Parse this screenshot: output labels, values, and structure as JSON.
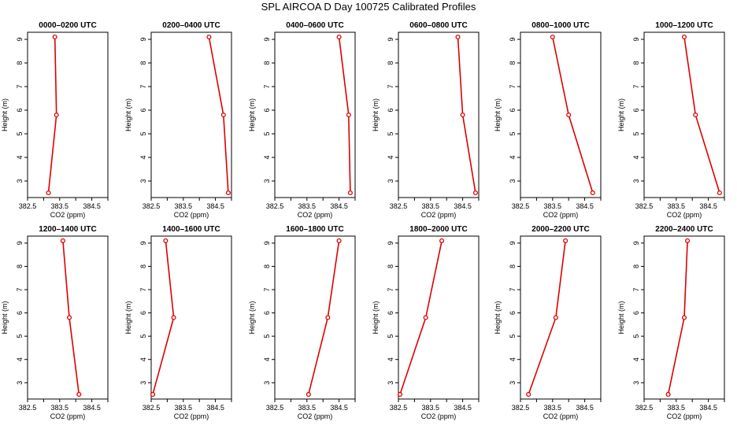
{
  "figure": {
    "title": "SPL AIRCOA D  Day 100725  Calibrated Profiles"
  },
  "style": {
    "line_color": "#dd0000",
    "marker_color": "#dd0000"
  },
  "chart_data": [
    {
      "type": "line",
      "title": "0000–0200 UTC",
      "xlabel": "CO2 (ppm)",
      "ylabel": "Height (m)",
      "xlim": [
        382.5,
        385.0
      ],
      "ylim": [
        2.3,
        9.3
      ],
      "xticks": [
        "382.5",
        "383.5",
        "384.5"
      ],
      "yticks": [
        "3",
        "4",
        "5",
        "6",
        "7",
        "8",
        "9"
      ],
      "x": [
        383.15,
        383.4,
        383.35
      ],
      "y": [
        2.5,
        5.8,
        9.1
      ]
    },
    {
      "type": "line",
      "title": "0200–0400 UTC",
      "xlabel": "CO2 (ppm)",
      "ylabel": "Height (m)",
      "xlim": [
        382.5,
        385.0
      ],
      "ylim": [
        2.3,
        9.3
      ],
      "xticks": [
        "382.5",
        "383.5",
        "384.5"
      ],
      "yticks": [
        "3",
        "4",
        "5",
        "6",
        "7",
        "8",
        "9"
      ],
      "x": [
        384.9,
        384.75,
        384.3
      ],
      "y": [
        2.5,
        5.8,
        9.1
      ]
    },
    {
      "type": "line",
      "title": "0400–0600 UTC",
      "xlabel": "CO2 (ppm)",
      "ylabel": "Height (m)",
      "xlim": [
        382.5,
        385.0
      ],
      "ylim": [
        2.3,
        9.3
      ],
      "xticks": [
        "382.5",
        "383.5",
        "384.5"
      ],
      "yticks": [
        "3",
        "4",
        "5",
        "6",
        "7",
        "8",
        "9"
      ],
      "x": [
        384.85,
        384.8,
        384.5
      ],
      "y": [
        2.5,
        5.8,
        9.1
      ]
    },
    {
      "type": "line",
      "title": "0600–0800 UTC",
      "xlabel": "CO2 (ppm)",
      "ylabel": "Height (m)",
      "xlim": [
        382.5,
        385.0
      ],
      "ylim": [
        2.3,
        9.3
      ],
      "xticks": [
        "382.5",
        "383.5",
        "384.5"
      ],
      "yticks": [
        "3",
        "4",
        "5",
        "6",
        "7",
        "8",
        "9"
      ],
      "x": [
        384.9,
        384.5,
        384.35
      ],
      "y": [
        2.5,
        5.8,
        9.1
      ]
    },
    {
      "type": "line",
      "title": "0800–1000 UTC",
      "xlabel": "CO2 (ppm)",
      "ylabel": "Height (m)",
      "xlim": [
        382.5,
        385.0
      ],
      "ylim": [
        2.3,
        9.3
      ],
      "xticks": [
        "382.5",
        "383.5",
        "384.5"
      ],
      "yticks": [
        "3",
        "4",
        "5",
        "6",
        "7",
        "8",
        "9"
      ],
      "x": [
        384.75,
        384.0,
        383.5
      ],
      "y": [
        2.5,
        5.8,
        9.1
      ]
    },
    {
      "type": "line",
      "title": "1000–1200 UTC",
      "xlabel": "CO2 (ppm)",
      "ylabel": "Height (m)",
      "xlim": [
        382.5,
        385.0
      ],
      "ylim": [
        2.3,
        9.3
      ],
      "xticks": [
        "382.5",
        "383.5",
        "384.5"
      ],
      "yticks": [
        "3",
        "4",
        "5",
        "6",
        "7",
        "8",
        "9"
      ],
      "x": [
        384.85,
        384.1,
        383.75
      ],
      "y": [
        2.5,
        5.8,
        9.1
      ]
    },
    {
      "type": "line",
      "title": "1200–1400 UTC",
      "xlabel": "CO2 (ppm)",
      "ylabel": "Height (m)",
      "xlim": [
        382.5,
        385.0
      ],
      "ylim": [
        2.3,
        9.3
      ],
      "xticks": [
        "382.5",
        "383.5",
        "384.5"
      ],
      "yticks": [
        "3",
        "4",
        "5",
        "6",
        "7",
        "8",
        "9"
      ],
      "x": [
        384.1,
        383.8,
        383.6
      ],
      "y": [
        2.5,
        5.8,
        9.1
      ]
    },
    {
      "type": "line",
      "title": "1400–1600 UTC",
      "xlabel": "CO2 (ppm)",
      "ylabel": "Height (m)",
      "xlim": [
        382.5,
        385.0
      ],
      "ylim": [
        2.3,
        9.3
      ],
      "xticks": [
        "382.5",
        "383.5",
        "384.5"
      ],
      "yticks": [
        "3",
        "4",
        "5",
        "6",
        "7",
        "8",
        "9"
      ],
      "x": [
        382.55,
        383.2,
        382.95
      ],
      "y": [
        2.5,
        5.8,
        9.1
      ]
    },
    {
      "type": "line",
      "title": "1600–1800 UTC",
      "xlabel": "CO2 (ppm)",
      "ylabel": "Height (m)",
      "xlim": [
        382.5,
        385.0
      ],
      "ylim": [
        2.3,
        9.3
      ],
      "xticks": [
        "382.5",
        "383.5",
        "384.5"
      ],
      "yticks": [
        "3",
        "4",
        "5",
        "6",
        "7",
        "8",
        "9"
      ],
      "x": [
        383.55,
        384.15,
        384.5
      ],
      "y": [
        2.5,
        5.8,
        9.1
      ]
    },
    {
      "type": "line",
      "title": "1800–2000 UTC",
      "xlabel": "CO2 (ppm)",
      "ylabel": "Height (m)",
      "xlim": [
        382.5,
        385.0
      ],
      "ylim": [
        2.3,
        9.3
      ],
      "xticks": [
        "382.5",
        "383.5",
        "384.5"
      ],
      "yticks": [
        "3",
        "4",
        "5",
        "6",
        "7",
        "8",
        "9"
      ],
      "x": [
        382.55,
        383.35,
        383.85
      ],
      "y": [
        2.5,
        5.8,
        9.1
      ]
    },
    {
      "type": "line",
      "title": "2000–2200 UTC",
      "xlabel": "CO2 (ppm)",
      "ylabel": "Height (m)",
      "xlim": [
        382.5,
        385.0
      ],
      "ylim": [
        2.3,
        9.3
      ],
      "xticks": [
        "382.5",
        "383.5",
        "384.5"
      ],
      "yticks": [
        "3",
        "4",
        "5",
        "6",
        "7",
        "8",
        "9"
      ],
      "x": [
        382.75,
        383.6,
        383.9
      ],
      "y": [
        2.5,
        5.8,
        9.1
      ]
    },
    {
      "type": "line",
      "title": "2200–2400 UTC",
      "xlabel": "CO2 (ppm)",
      "ylabel": "Height (m)",
      "xlim": [
        382.5,
        385.0
      ],
      "ylim": [
        2.3,
        9.3
      ],
      "xticks": [
        "382.5",
        "383.5",
        "384.5"
      ],
      "yticks": [
        "3",
        "4",
        "5",
        "6",
        "7",
        "8",
        "9"
      ],
      "x": [
        383.25,
        383.75,
        383.85
      ],
      "y": [
        2.5,
        5.8,
        9.1
      ]
    }
  ]
}
